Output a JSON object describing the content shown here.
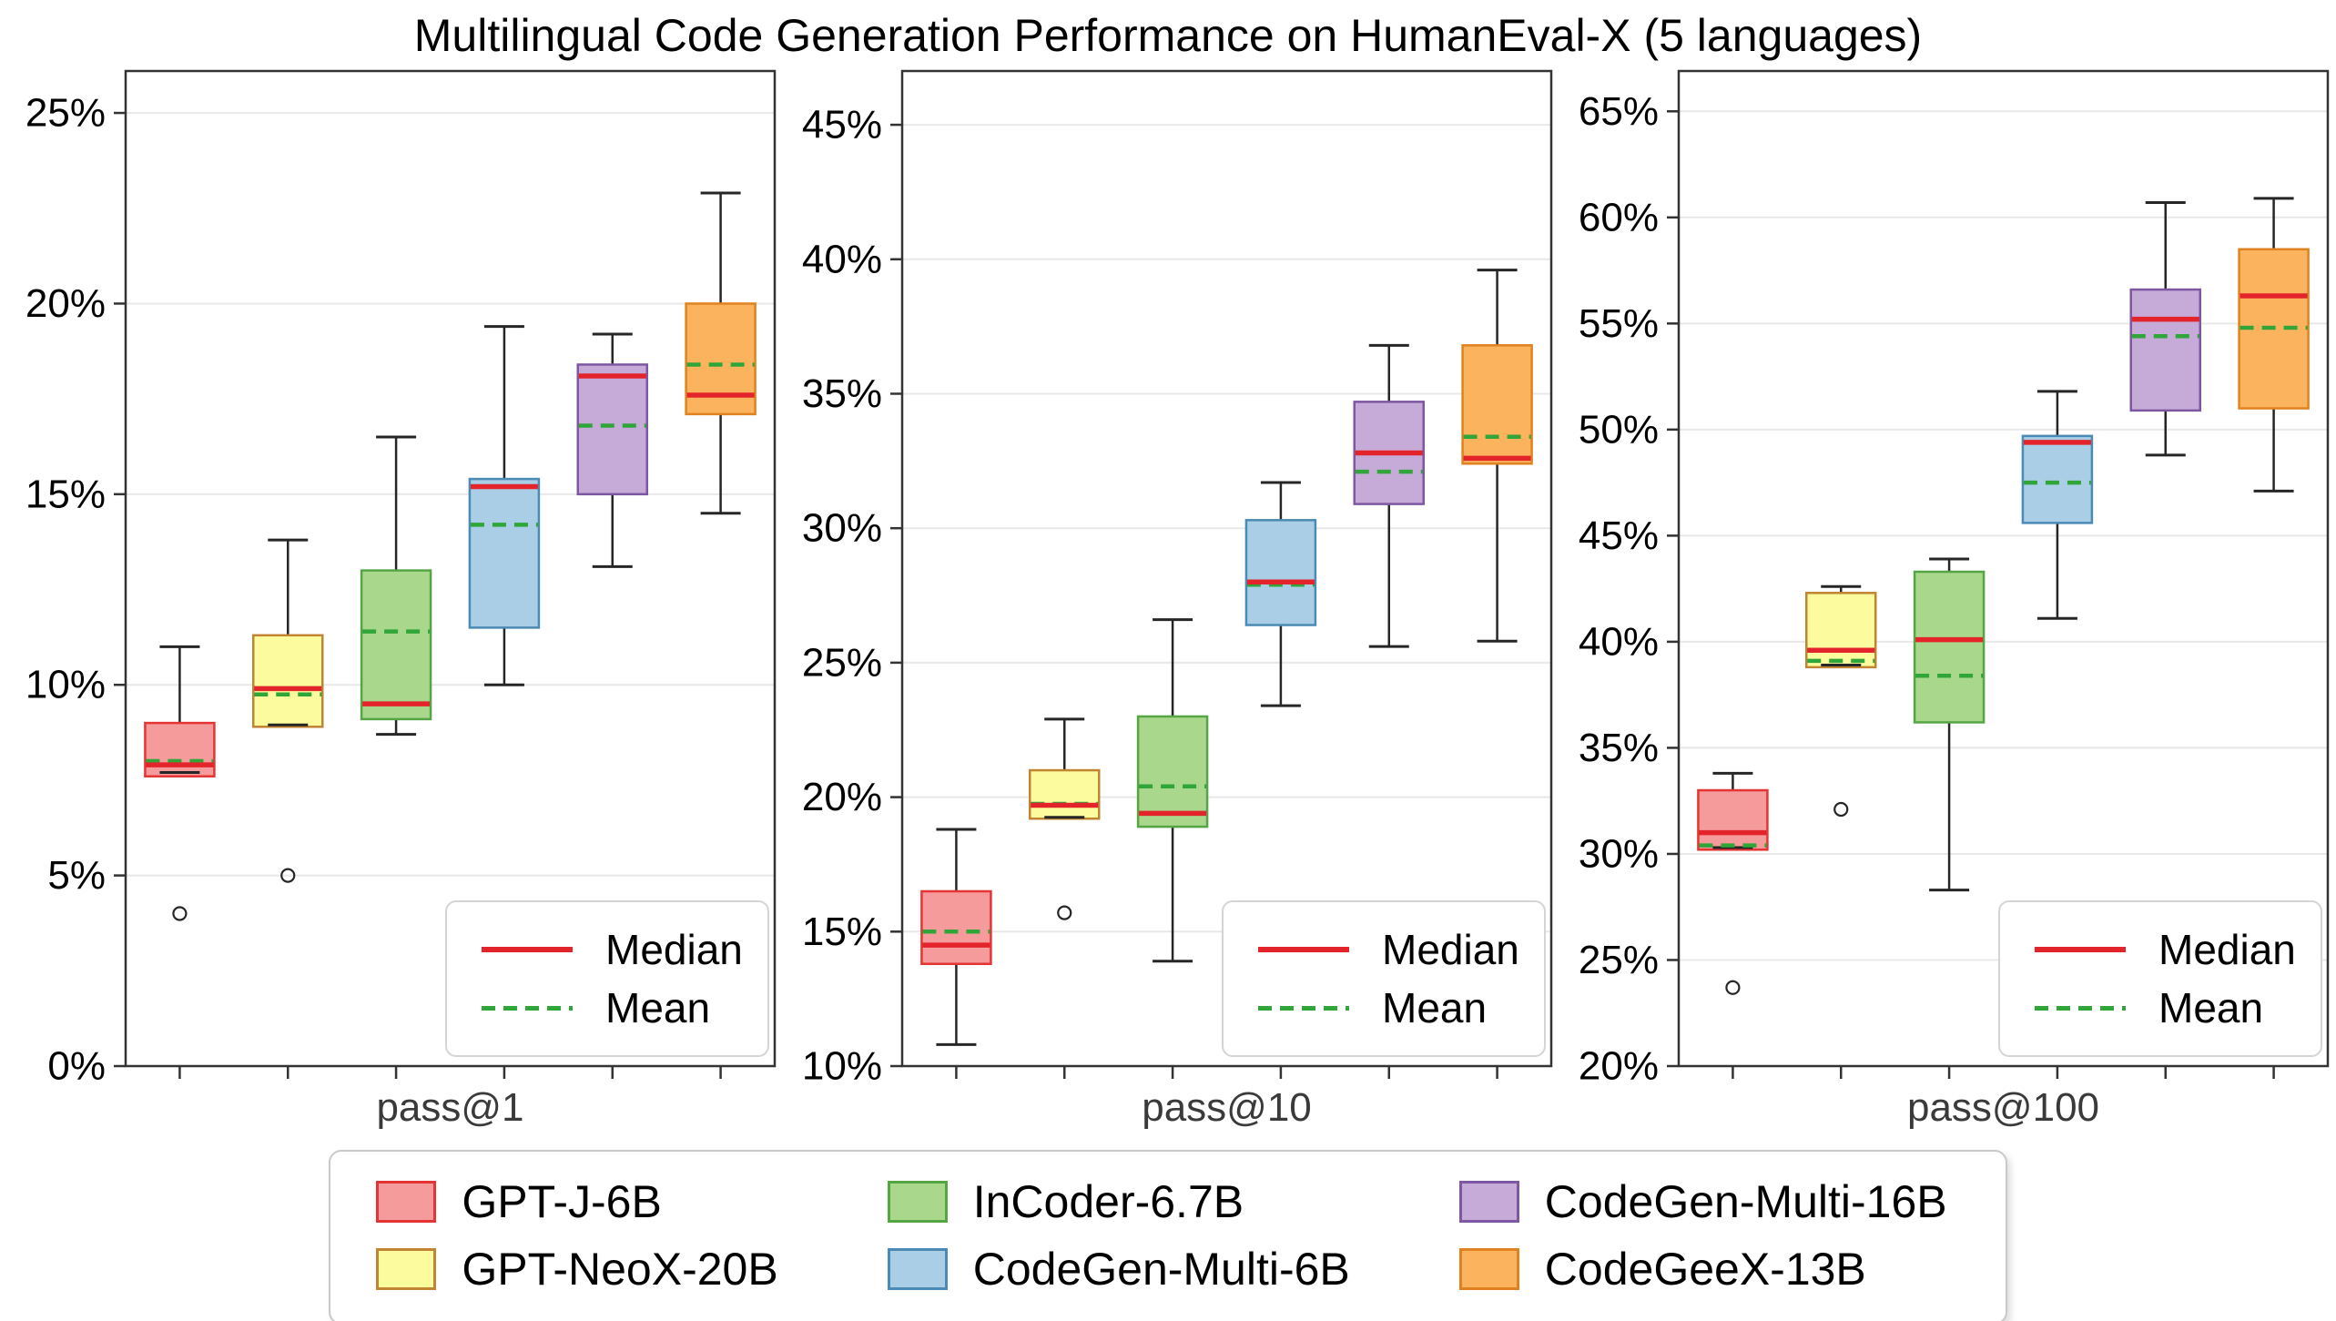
{
  "chart_data": {
    "type": "box",
    "title": "Multilingual Code Generation Performance on HumanEval-X (5 languages)",
    "grid": "on",
    "inner_legend": {
      "median_label": "Median",
      "mean_label": "Mean",
      "median_color": "#E3242B",
      "mean_color": "#2FA637",
      "position": "lower right of each panel"
    },
    "styles": {
      "grid_color": "#E8E8E8",
      "spine_color": "#333333",
      "whisker_color": "#262626",
      "tick_label_color": "#000000",
      "xlabel_color": "#3A3A3A",
      "background": "#FFFFFF"
    },
    "models": [
      {
        "name": "GPT-J-6B",
        "fill": "#F59B9B",
        "edge": "#E43434"
      },
      {
        "name": "GPT-NeoX-20B",
        "fill": "#FCFC9E",
        "edge": "#C08433"
      },
      {
        "name": "InCoder-6.7B",
        "fill": "#A9D78C",
        "edge": "#55A545"
      },
      {
        "name": "CodeGen-Multi-6B",
        "fill": "#A9CEE5",
        "edge": "#4C8AB6"
      },
      {
        "name": "CodeGen-Multi-16B",
        "fill": "#C6ABD8",
        "edge": "#7E57A2"
      },
      {
        "name": "CodeGeeX-13B",
        "fill": "#FCB35E",
        "edge": "#E0821F"
      }
    ],
    "legend_order": [
      0,
      2,
      4,
      1,
      3,
      5
    ],
    "panels": [
      {
        "xlabel": "pass@1",
        "ymin": 0,
        "ymax": 26.1,
        "yticks": [
          0,
          5,
          10,
          15,
          20,
          25
        ],
        "ytick_labels": [
          "0%",
          "5%",
          "10%",
          "15%",
          "20%",
          "25%"
        ],
        "boxes": [
          {
            "model": "GPT-J-6B",
            "whisker_low": 7.7,
            "q1": 7.6,
            "median": 7.9,
            "mean": 8.0,
            "q3": 9.0,
            "whisker_high": 11.0,
            "outliers": [
              4.0
            ]
          },
          {
            "model": "GPT-NeoX-20B",
            "whisker_low": 8.95,
            "q1": 8.9,
            "median": 9.9,
            "mean": 9.75,
            "q3": 11.3,
            "whisker_high": 13.8,
            "outliers": [
              5.0
            ]
          },
          {
            "model": "InCoder-6.7B",
            "whisker_low": 8.7,
            "q1": 9.1,
            "median": 9.5,
            "mean": 11.4,
            "q3": 13.0,
            "whisker_high": 16.5,
            "outliers": []
          },
          {
            "model": "CodeGen-Multi-6B",
            "whisker_low": 10.0,
            "q1": 11.5,
            "median": 15.2,
            "mean": 14.2,
            "q3": 15.4,
            "whisker_high": 19.4,
            "outliers": []
          },
          {
            "model": "CodeGen-Multi-16B",
            "whisker_low": 13.1,
            "q1": 15.0,
            "median": 18.1,
            "mean": 16.8,
            "q3": 18.4,
            "whisker_high": 19.2,
            "outliers": []
          },
          {
            "model": "CodeGeeX-13B",
            "whisker_low": 14.5,
            "q1": 17.1,
            "median": 17.6,
            "mean": 18.4,
            "q3": 20.0,
            "whisker_high": 22.9,
            "outliers": []
          }
        ]
      },
      {
        "xlabel": "pass@10",
        "ymin": 10,
        "ymax": 47,
        "yticks": [
          10,
          15,
          20,
          25,
          30,
          35,
          40,
          45
        ],
        "ytick_labels": [
          "10%",
          "15%",
          "20%",
          "25%",
          "30%",
          "35%",
          "40%",
          "45%"
        ],
        "boxes": [
          {
            "model": "GPT-J-6B",
            "whisker_low": 10.8,
            "q1": 13.8,
            "median": 14.5,
            "mean": 15.0,
            "q3": 16.5,
            "whisker_high": 18.8,
            "outliers": []
          },
          {
            "model": "GPT-NeoX-20B",
            "whisker_low": 19.25,
            "q1": 19.2,
            "median": 19.7,
            "mean": 19.75,
            "q3": 21.0,
            "whisker_high": 22.9,
            "outliers": [
              15.7
            ]
          },
          {
            "model": "InCoder-6.7B",
            "whisker_low": 13.9,
            "q1": 18.9,
            "median": 19.4,
            "mean": 20.4,
            "q3": 23.0,
            "whisker_high": 26.6,
            "outliers": []
          },
          {
            "model": "CodeGen-Multi-6B",
            "whisker_low": 23.4,
            "q1": 26.4,
            "median": 28.0,
            "mean": 27.9,
            "q3": 30.3,
            "whisker_high": 31.7,
            "outliers": []
          },
          {
            "model": "CodeGen-Multi-16B",
            "whisker_low": 25.6,
            "q1": 30.9,
            "median": 32.8,
            "mean": 32.1,
            "q3": 34.7,
            "whisker_high": 36.8,
            "outliers": []
          },
          {
            "model": "CodeGeeX-13B",
            "whisker_low": 25.8,
            "q1": 32.4,
            "median": 32.6,
            "mean": 33.4,
            "q3": 36.8,
            "whisker_high": 39.6,
            "outliers": []
          }
        ]
      },
      {
        "xlabel": "pass@100",
        "ymin": 20,
        "ymax": 66.9,
        "yticks": [
          20,
          25,
          30,
          35,
          40,
          45,
          50,
          55,
          60,
          65
        ],
        "ytick_labels": [
          "20%",
          "25%",
          "30%",
          "35%",
          "40%",
          "45%",
          "50%",
          "55%",
          "60%",
          "65%"
        ],
        "boxes": [
          {
            "model": "GPT-J-6B",
            "whisker_low": 30.3,
            "q1": 30.2,
            "median": 31.0,
            "mean": 30.4,
            "q3": 33.0,
            "whisker_high": 33.8,
            "outliers": [
              23.7
            ]
          },
          {
            "model": "GPT-NeoX-20B",
            "whisker_low": 38.9,
            "q1": 38.8,
            "median": 39.6,
            "mean": 39.1,
            "q3": 42.3,
            "whisker_high": 42.6,
            "outliers": [
              32.1
            ]
          },
          {
            "model": "InCoder-6.7B",
            "whisker_low": 28.3,
            "q1": 36.2,
            "median": 40.1,
            "mean": 38.4,
            "q3": 43.3,
            "whisker_high": 43.9,
            "outliers": []
          },
          {
            "model": "CodeGen-Multi-6B",
            "whisker_low": 41.1,
            "q1": 45.6,
            "median": 49.4,
            "mean": 47.5,
            "q3": 49.7,
            "whisker_high": 51.8,
            "outliers": []
          },
          {
            "model": "CodeGen-Multi-16B",
            "whisker_low": 48.8,
            "q1": 50.9,
            "median": 55.2,
            "mean": 54.4,
            "q3": 56.6,
            "whisker_high": 60.7,
            "outliers": []
          },
          {
            "model": "CodeGeeX-13B",
            "whisker_low": 47.1,
            "q1": 51.0,
            "median": 56.3,
            "mean": 54.8,
            "q3": 58.5,
            "whisker_high": 60.9,
            "outliers": []
          }
        ]
      }
    ]
  }
}
